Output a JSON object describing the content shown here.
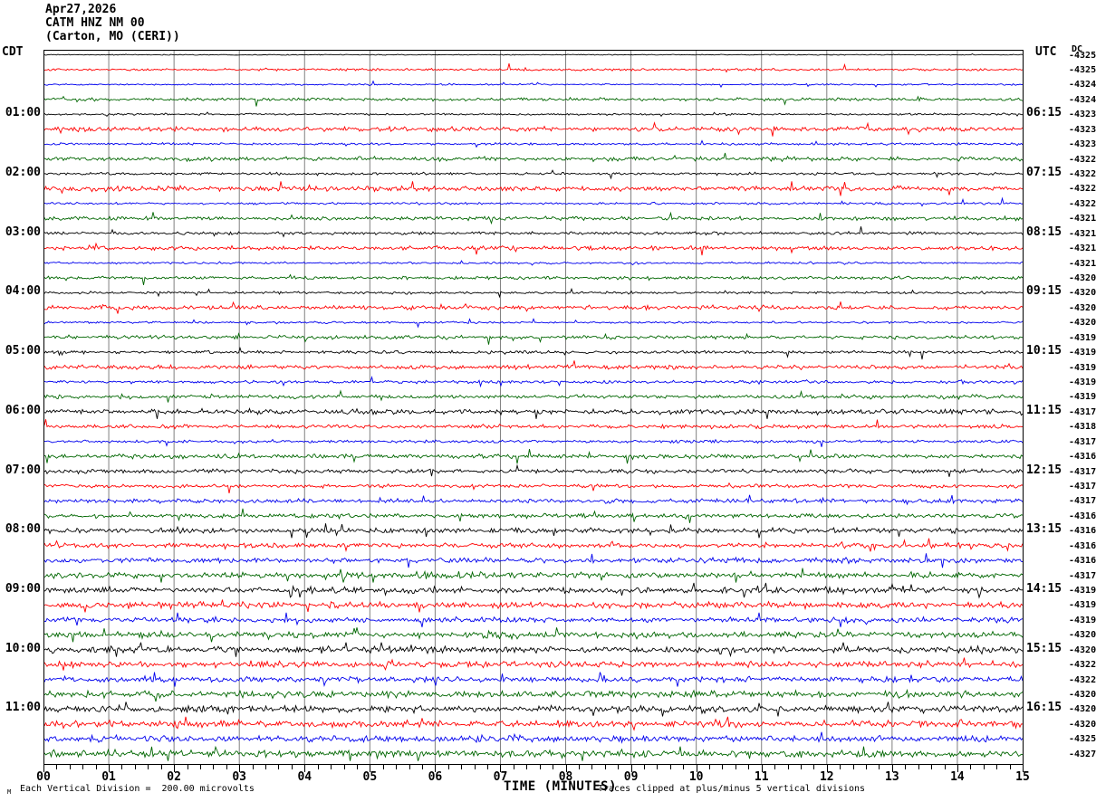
{
  "header": {
    "date": "Apr27,2026",
    "station": "CATM HNZ NM 00",
    "location": "(Carton, MO (CERI))"
  },
  "axes": {
    "left_corner": "CDT",
    "right_corner": "UTC",
    "dc_header": "DC",
    "x_title": "TIME (MINUTES)",
    "x_ticks": [
      "00",
      "01",
      "02",
      "03",
      "04",
      "05",
      "06",
      "07",
      "08",
      "09",
      "10",
      "11",
      "12",
      "13",
      "14",
      "15"
    ]
  },
  "footer": {
    "corner_mark": "M",
    "scale_note": "Each Vertical Division =  200.00 microvolts",
    "clip_note": "Traces clipped at plus/minus 5 vertical divisions"
  },
  "colors": {
    "black": "#000000",
    "red": "#ff0000",
    "blue": "#0000ee",
    "green": "#006600",
    "grid": "#808080",
    "frame": "#000000"
  },
  "chart_data": {
    "type": "line",
    "title": "CATM HNZ NM 00 helicorder, Carton MO (CERI), Apr27,2026",
    "xlabel": "TIME (MINUTES)",
    "x_range_minutes": [
      0,
      15
    ],
    "minutes_per_line": 15,
    "lines_per_hour": 4,
    "vertical_division_microvolts": 200.0,
    "clip_divisions": 5,
    "color_cycle": [
      "black",
      "red",
      "blue",
      "green"
    ],
    "rows": [
      {
        "color": "black",
        "dc": "-4325",
        "cdt": "",
        "utc": "",
        "noise": 0.4
      },
      {
        "color": "red",
        "dc": "-4325",
        "cdt": "",
        "utc": "",
        "noise": 1.0
      },
      {
        "color": "blue",
        "dc": "-4324",
        "cdt": "",
        "utc": "",
        "noise": 0.7
      },
      {
        "color": "green",
        "dc": "-4324",
        "cdt": "",
        "utc": "",
        "noise": 1.3
      },
      {
        "color": "black",
        "dc": "-4323",
        "cdt": "01:00",
        "utc": "06:15",
        "noise": 0.8
      },
      {
        "color": "red",
        "dc": "-4323",
        "cdt": "",
        "utc": "",
        "noise": 2.0
      },
      {
        "color": "blue",
        "dc": "-4323",
        "cdt": "",
        "utc": "",
        "noise": 1.0
      },
      {
        "color": "green",
        "dc": "-4322",
        "cdt": "",
        "utc": "",
        "noise": 1.8
      },
      {
        "color": "black",
        "dc": "-4322",
        "cdt": "02:00",
        "utc": "07:15",
        "noise": 1.1
      },
      {
        "color": "red",
        "dc": "-4322",
        "cdt": "",
        "utc": "",
        "noise": 2.2
      },
      {
        "color": "blue",
        "dc": "-4322",
        "cdt": "",
        "utc": "",
        "noise": 1.0
      },
      {
        "color": "green",
        "dc": "-4321",
        "cdt": "",
        "utc": "",
        "noise": 1.6
      },
      {
        "color": "black",
        "dc": "-4321",
        "cdt": "03:00",
        "utc": "08:15",
        "noise": 1.3
      },
      {
        "color": "red",
        "dc": "-4321",
        "cdt": "",
        "utc": "",
        "noise": 1.8
      },
      {
        "color": "blue",
        "dc": "-4321",
        "cdt": "",
        "utc": "",
        "noise": 0.9
      },
      {
        "color": "green",
        "dc": "-4320",
        "cdt": "",
        "utc": "",
        "noise": 1.4
      },
      {
        "color": "black",
        "dc": "-4320",
        "cdt": "04:00",
        "utc": "09:15",
        "noise": 1.1
      },
      {
        "color": "red",
        "dc": "-4320",
        "cdt": "",
        "utc": "",
        "noise": 1.8
      },
      {
        "color": "blue",
        "dc": "-4320",
        "cdt": "",
        "utc": "",
        "noise": 0.9
      },
      {
        "color": "green",
        "dc": "-4319",
        "cdt": "",
        "utc": "",
        "noise": 1.6
      },
      {
        "color": "black",
        "dc": "-4319",
        "cdt": "05:00",
        "utc": "10:15",
        "noise": 1.3
      },
      {
        "color": "red",
        "dc": "-4319",
        "cdt": "",
        "utc": "",
        "noise": 1.8
      },
      {
        "color": "blue",
        "dc": "-4319",
        "cdt": "",
        "utc": "",
        "noise": 1.3
      },
      {
        "color": "green",
        "dc": "-4319",
        "cdt": "",
        "utc": "",
        "noise": 1.6
      },
      {
        "color": "black",
        "dc": "-4317",
        "cdt": "06:00",
        "utc": "11:15",
        "noise": 2.2
      },
      {
        "color": "red",
        "dc": "-4318",
        "cdt": "",
        "utc": "",
        "noise": 1.6
      },
      {
        "color": "blue",
        "dc": "-4317",
        "cdt": "",
        "utc": "",
        "noise": 1.3
      },
      {
        "color": "green",
        "dc": "-4316",
        "cdt": "",
        "utc": "",
        "noise": 1.8
      },
      {
        "color": "black",
        "dc": "-4317",
        "cdt": "07:00",
        "utc": "12:15",
        "noise": 1.8
      },
      {
        "color": "red",
        "dc": "-4317",
        "cdt": "",
        "utc": "",
        "noise": 1.6
      },
      {
        "color": "blue",
        "dc": "-4317",
        "cdt": "",
        "utc": "",
        "noise": 1.8
      },
      {
        "color": "green",
        "dc": "-4316",
        "cdt": "",
        "utc": "",
        "noise": 1.8
      },
      {
        "color": "black",
        "dc": "-4316",
        "cdt": "08:00",
        "utc": "13:15",
        "noise": 2.2
      },
      {
        "color": "red",
        "dc": "-4316",
        "cdt": "",
        "utc": "",
        "noise": 2.2
      },
      {
        "color": "blue",
        "dc": "-4316",
        "cdt": "",
        "utc": "",
        "noise": 2.2
      },
      {
        "color": "green",
        "dc": "-4317",
        "cdt": "",
        "utc": "",
        "noise": 2.4,
        "bursts": [
          {
            "t": 6.2,
            "amp": 3,
            "w": 0.35
          }
        ]
      },
      {
        "color": "black",
        "dc": "-4319",
        "cdt": "09:00",
        "utc": "14:15",
        "noise": 2.6
      },
      {
        "color": "red",
        "dc": "-4319",
        "cdt": "",
        "utc": "",
        "noise": 2.6
      },
      {
        "color": "blue",
        "dc": "-4319",
        "cdt": "",
        "utc": "",
        "noise": 2.2
      },
      {
        "color": "green",
        "dc": "-4320",
        "cdt": "",
        "utc": "",
        "noise": 2.6,
        "bursts": [
          {
            "t": 6.9,
            "amp": 5,
            "w": 0.25
          }
        ]
      },
      {
        "color": "black",
        "dc": "-4320",
        "cdt": "10:00",
        "utc": "15:15",
        "noise": 2.8
      },
      {
        "color": "red",
        "dc": "-4322",
        "cdt": "",
        "utc": "",
        "noise": 2.6
      },
      {
        "color": "blue",
        "dc": "-4322",
        "cdt": "",
        "utc": "",
        "noise": 2.4
      },
      {
        "color": "green",
        "dc": "-4320",
        "cdt": "",
        "utc": "",
        "noise": 2.8,
        "bursts": [
          {
            "t": 13.0,
            "amp": 3,
            "w": 0.3
          }
        ]
      },
      {
        "color": "black",
        "dc": "-4320",
        "cdt": "11:00",
        "utc": "16:15",
        "noise": 3.0
      },
      {
        "color": "red",
        "dc": "-4320",
        "cdt": "",
        "utc": "",
        "noise": 3.0
      },
      {
        "color": "blue",
        "dc": "-4325",
        "cdt": "",
        "utc": "",
        "noise": 2.8
      },
      {
        "color": "green",
        "dc": "-4327",
        "cdt": "",
        "utc": "",
        "noise": 3.0
      }
    ]
  }
}
